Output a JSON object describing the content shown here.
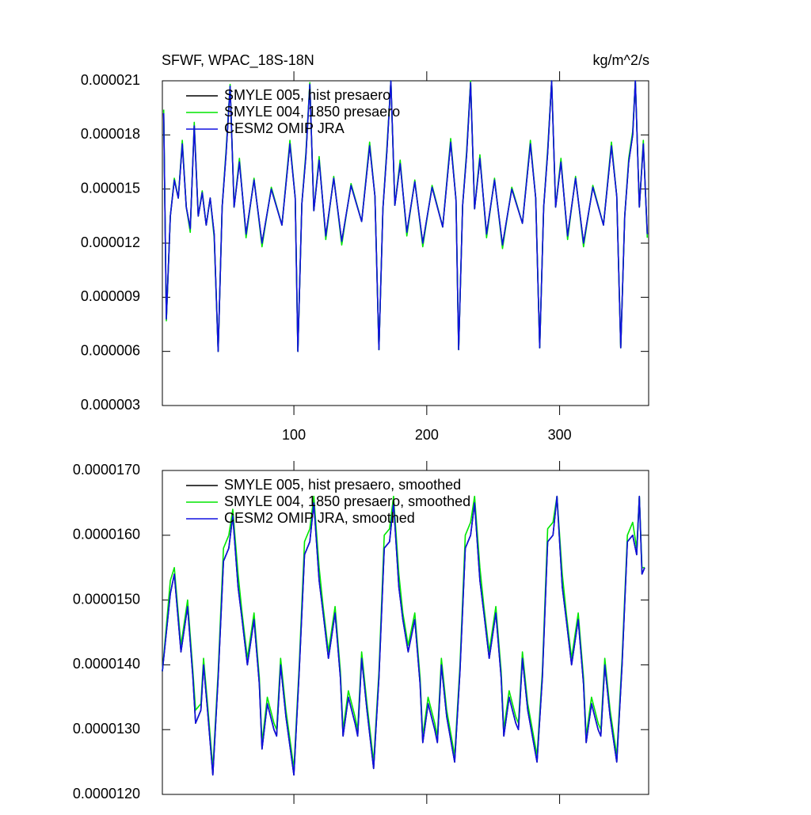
{
  "chart_data": [
    {
      "type": "line",
      "title": "SFWF, WPAC_18S-18N",
      "units": "kg/m^2/s",
      "legend": "upper left",
      "xlim": [
        1,
        367
      ],
      "xticks": [
        100,
        200,
        300
      ],
      "ylim": [
        3e-06,
        2.1e-05
      ],
      "yticks": [
        {
          "value": 3e-06,
          "label": "0.000003"
        },
        {
          "value": 6e-06,
          "label": "0.000006"
        },
        {
          "value": 9e-06,
          "label": "0.000009"
        },
        {
          "value": 1.2e-05,
          "label": "0.000012"
        },
        {
          "value": 1.5e-05,
          "label": "0.000015"
        },
        {
          "value": 1.8e-05,
          "label": "0.000018"
        },
        {
          "value": 2.1e-05,
          "label": "0.000021"
        }
      ],
      "x": [
        2,
        4,
        7,
        10,
        13,
        16,
        19,
        22,
        25,
        28,
        31,
        34,
        37,
        40,
        43,
        46,
        49,
        52,
        55,
        59,
        64,
        70,
        76,
        83,
        91,
        97,
        101,
        103,
        106,
        109,
        112,
        115,
        119,
        124,
        130,
        136,
        143,
        151,
        157,
        161,
        164,
        167,
        170,
        173,
        176,
        180,
        185,
        191,
        197,
        204,
        212,
        218,
        222,
        224,
        227,
        230,
        233,
        236,
        240,
        245,
        251,
        257,
        264,
        272,
        278,
        282,
        285,
        288,
        291,
        294,
        297,
        301,
        306,
        312,
        318,
        325,
        333,
        339,
        343,
        346,
        349,
        352,
        355,
        357,
        360,
        363,
        366
      ],
      "series": [
        {
          "name": "SMYLE 005, hist presaero",
          "color": "#000000",
          "values": [
            1.92e-05,
            7.8e-06,
            1.35e-05,
            1.55e-05,
            1.45e-05,
            1.75e-05,
            1.4e-05,
            1.28e-05,
            1.85e-05,
            1.35e-05,
            1.48e-05,
            1.3e-05,
            1.45e-05,
            1.25e-05,
            6e-06,
            1.4e-05,
            1.7e-05,
            2.07e-05,
            1.4e-05,
            1.65e-05,
            1.25e-05,
            1.55e-05,
            1.2e-05,
            1.5e-05,
            1.3e-05,
            1.75e-05,
            1.45e-05,
            6e-06,
            1.42e-05,
            1.68e-05,
            2.08e-05,
            1.38e-05,
            1.66e-05,
            1.24e-05,
            1.56e-05,
            1.21e-05,
            1.52e-05,
            1.32e-05,
            1.74e-05,
            1.46e-05,
            6.1e-06,
            1.39e-05,
            1.71e-05,
            2.1e-05,
            1.41e-05,
            1.64e-05,
            1.26e-05,
            1.54e-05,
            1.2e-05,
            1.51e-05,
            1.29e-05,
            1.76e-05,
            1.44e-05,
            6.1e-06,
            1.41e-05,
            1.69e-05,
            2.09e-05,
            1.39e-05,
            1.67e-05,
            1.25e-05,
            1.55e-05,
            1.19e-05,
            1.5e-05,
            1.31e-05,
            1.75e-05,
            1.45e-05,
            6.2e-06,
            1.4e-05,
            1.7e-05,
            2.1e-05,
            1.4e-05,
            1.65e-05,
            1.24e-05,
            1.56e-05,
            1.2e-05,
            1.51e-05,
            1.3e-05,
            1.74e-05,
            1.46e-05,
            6.2e-06,
            1.35e-05,
            1.65e-05,
            1.8e-05,
            2.1e-05,
            1.4e-05,
            1.75e-05,
            1.25e-05
          ]
        },
        {
          "name": "SMYLE 004, 1850 presaero",
          "color": "#00e600",
          "values": [
            1.94e-05,
            7.7e-06,
            1.35e-05,
            1.56e-05,
            1.45e-05,
            1.77e-05,
            1.4e-05,
            1.26e-05,
            1.87e-05,
            1.35e-05,
            1.49e-05,
            1.3e-05,
            1.45e-05,
            1.23e-05,
            6e-06,
            1.4e-05,
            1.72e-05,
            2.08e-05,
            1.4e-05,
            1.67e-05,
            1.23e-05,
            1.56e-05,
            1.18e-05,
            1.51e-05,
            1.3e-05,
            1.77e-05,
            1.45e-05,
            6e-06,
            1.42e-05,
            1.7e-05,
            2.09e-05,
            1.38e-05,
            1.68e-05,
            1.22e-05,
            1.57e-05,
            1.19e-05,
            1.53e-05,
            1.32e-05,
            1.76e-05,
            1.46e-05,
            6.1e-06,
            1.39e-05,
            1.73e-05,
            2.1e-05,
            1.41e-05,
            1.66e-05,
            1.24e-05,
            1.55e-05,
            1.18e-05,
            1.52e-05,
            1.29e-05,
            1.78e-05,
            1.44e-05,
            6.1e-06,
            1.41e-05,
            1.71e-05,
            2.1e-05,
            1.39e-05,
            1.69e-05,
            1.23e-05,
            1.56e-05,
            1.17e-05,
            1.51e-05,
            1.31e-05,
            1.77e-05,
            1.45e-05,
            6.2e-06,
            1.4e-05,
            1.72e-05,
            2.1e-05,
            1.4e-05,
            1.67e-05,
            1.22e-05,
            1.57e-05,
            1.18e-05,
            1.52e-05,
            1.3e-05,
            1.76e-05,
            1.46e-05,
            6.2e-06,
            1.35e-05,
            1.67e-05,
            1.82e-05,
            2.1e-05,
            1.4e-05,
            1.77e-05,
            1.23e-05
          ]
        },
        {
          "name": "CESM2 OMIP JRA",
          "color": "#1010e0",
          "values": [
            1.92e-05,
            7.8e-06,
            1.35e-05,
            1.55e-05,
            1.45e-05,
            1.75e-05,
            1.4e-05,
            1.28e-05,
            1.85e-05,
            1.35e-05,
            1.48e-05,
            1.3e-05,
            1.45e-05,
            1.25e-05,
            6e-06,
            1.4e-05,
            1.7e-05,
            2.07e-05,
            1.4e-05,
            1.65e-05,
            1.25e-05,
            1.55e-05,
            1.2e-05,
            1.5e-05,
            1.3e-05,
            1.75e-05,
            1.45e-05,
            6e-06,
            1.42e-05,
            1.68e-05,
            2.08e-05,
            1.38e-05,
            1.66e-05,
            1.24e-05,
            1.56e-05,
            1.21e-05,
            1.52e-05,
            1.32e-05,
            1.74e-05,
            1.46e-05,
            6.1e-06,
            1.39e-05,
            1.71e-05,
            2.1e-05,
            1.41e-05,
            1.64e-05,
            1.26e-05,
            1.54e-05,
            1.2e-05,
            1.51e-05,
            1.29e-05,
            1.76e-05,
            1.44e-05,
            6.1e-06,
            1.41e-05,
            1.69e-05,
            2.09e-05,
            1.39e-05,
            1.67e-05,
            1.25e-05,
            1.55e-05,
            1.19e-05,
            1.5e-05,
            1.31e-05,
            1.75e-05,
            1.45e-05,
            6.2e-06,
            1.4e-05,
            1.7e-05,
            2.1e-05,
            1.4e-05,
            1.65e-05,
            1.24e-05,
            1.56e-05,
            1.2e-05,
            1.51e-05,
            1.3e-05,
            1.74e-05,
            1.46e-05,
            6.2e-06,
            1.35e-05,
            1.65e-05,
            1.8e-05,
            2.1e-05,
            1.4e-05,
            1.75e-05,
            1.25e-05
          ]
        }
      ]
    },
    {
      "type": "line",
      "legend": "upper left",
      "xlim": [
        1,
        367
      ],
      "xticks": [
        100,
        200,
        300
      ],
      "ylim": [
        1.2e-05,
        1.7e-05
      ],
      "yticks": [
        {
          "value": 1.2e-05,
          "label": "0.0000120"
        },
        {
          "value": 1.3e-05,
          "label": "0.0000130"
        },
        {
          "value": 1.4e-05,
          "label": "0.0000140"
        },
        {
          "value": 1.5e-05,
          "label": "0.0000150"
        },
        {
          "value": 1.6e-05,
          "label": "0.0000160"
        },
        {
          "value": 1.7e-05,
          "label": "0.0000170"
        }
      ],
      "x": [
        1,
        7,
        10,
        15,
        20,
        24,
        26,
        30,
        32,
        35,
        39,
        43,
        47,
        51,
        54,
        58,
        61,
        65,
        70,
        74,
        76,
        80,
        85,
        87,
        90,
        94,
        100,
        104,
        108,
        112,
        115,
        119,
        122,
        126,
        131,
        135,
        137,
        141,
        146,
        148,
        151,
        155,
        160,
        164,
        168,
        172,
        175,
        179,
        182,
        186,
        191,
        195,
        197,
        201,
        206,
        208,
        211,
        215,
        221,
        225,
        229,
        233,
        236,
        240,
        243,
        247,
        252,
        256,
        258,
        262,
        267,
        269,
        272,
        276,
        283,
        287,
        291,
        295,
        298,
        302,
        305,
        309,
        314,
        318,
        320,
        324,
        329,
        331,
        334,
        338,
        343,
        347,
        351,
        355,
        358,
        360,
        362,
        364
      ],
      "series": [
        {
          "name": "SMYLE 005, hist presaero, smoothed",
          "color": "#000000",
          "values": [
            1.39e-05,
            1.51e-05,
            1.54e-05,
            1.42e-05,
            1.49e-05,
            1.38e-05,
            1.31e-05,
            1.33e-05,
            1.4e-05,
            1.33e-05,
            1.23e-05,
            1.38e-05,
            1.56e-05,
            1.58e-05,
            1.63e-05,
            1.52e-05,
            1.47e-05,
            1.4e-05,
            1.47e-05,
            1.37e-05,
            1.27e-05,
            1.34e-05,
            1.3e-05,
            1.29e-05,
            1.4e-05,
            1.32e-05,
            1.23e-05,
            1.39e-05,
            1.57e-05,
            1.59e-05,
            1.65e-05,
            1.53e-05,
            1.48e-05,
            1.41e-05,
            1.48e-05,
            1.38e-05,
            1.29e-05,
            1.35e-05,
            1.31e-05,
            1.29e-05,
            1.41e-05,
            1.33e-05,
            1.24e-05,
            1.38e-05,
            1.58e-05,
            1.59e-05,
            1.65e-05,
            1.52e-05,
            1.47e-05,
            1.42e-05,
            1.47e-05,
            1.37e-05,
            1.28e-05,
            1.34e-05,
            1.3e-05,
            1.28e-05,
            1.4e-05,
            1.32e-05,
            1.25e-05,
            1.39e-05,
            1.58e-05,
            1.6e-05,
            1.65e-05,
            1.53e-05,
            1.48e-05,
            1.41e-05,
            1.48e-05,
            1.38e-05,
            1.29e-05,
            1.35e-05,
            1.31e-05,
            1.3e-05,
            1.41e-05,
            1.33e-05,
            1.25e-05,
            1.38e-05,
            1.59e-05,
            1.6e-05,
            1.66e-05,
            1.52e-05,
            1.47e-05,
            1.4e-05,
            1.47e-05,
            1.37e-05,
            1.28e-05,
            1.34e-05,
            1.3e-05,
            1.29e-05,
            1.4e-05,
            1.32e-05,
            1.25e-05,
            1.4e-05,
            1.59e-05,
            1.6e-05,
            1.57e-05,
            1.66e-05,
            1.54e-05,
            1.55e-05
          ]
        },
        {
          "name": "SMYLE 004, 1850 presaero, smoothed",
          "color": "#00e600",
          "values": [
            1.39e-05,
            1.53e-05,
            1.55e-05,
            1.43e-05,
            1.5e-05,
            1.39e-05,
            1.33e-05,
            1.34e-05,
            1.41e-05,
            1.34e-05,
            1.24e-05,
            1.39e-05,
            1.58e-05,
            1.6e-05,
            1.64e-05,
            1.54e-05,
            1.48e-05,
            1.41e-05,
            1.48e-05,
            1.38e-05,
            1.28e-05,
            1.35e-05,
            1.31e-05,
            1.3e-05,
            1.41e-05,
            1.33e-05,
            1.24e-05,
            1.4e-05,
            1.59e-05,
            1.61e-05,
            1.66e-05,
            1.55e-05,
            1.49e-05,
            1.42e-05,
            1.49e-05,
            1.39e-05,
            1.3e-05,
            1.36e-05,
            1.32e-05,
            1.3e-05,
            1.42e-05,
            1.34e-05,
            1.25e-05,
            1.39e-05,
            1.6e-05,
            1.61e-05,
            1.66e-05,
            1.54e-05,
            1.48e-05,
            1.43e-05,
            1.48e-05,
            1.38e-05,
            1.29e-05,
            1.35e-05,
            1.31e-05,
            1.29e-05,
            1.41e-05,
            1.33e-05,
            1.26e-05,
            1.4e-05,
            1.6e-05,
            1.62e-05,
            1.66e-05,
            1.55e-05,
            1.49e-05,
            1.42e-05,
            1.49e-05,
            1.39e-05,
            1.3e-05,
            1.36e-05,
            1.32e-05,
            1.31e-05,
            1.42e-05,
            1.34e-05,
            1.26e-05,
            1.39e-05,
            1.61e-05,
            1.62e-05,
            1.66e-05,
            1.54e-05,
            1.48e-05,
            1.41e-05,
            1.48e-05,
            1.38e-05,
            1.29e-05,
            1.35e-05,
            1.31e-05,
            1.3e-05,
            1.41e-05,
            1.33e-05,
            1.26e-05,
            1.41e-05,
            1.6e-05,
            1.62e-05,
            1.58e-05,
            1.66e-05,
            1.55e-05,
            1.55e-05
          ]
        },
        {
          "name": "CESM2 OMIP JRA, smoothed",
          "color": "#1010e0",
          "values": [
            1.39e-05,
            1.51e-05,
            1.54e-05,
            1.42e-05,
            1.49e-05,
            1.38e-05,
            1.31e-05,
            1.33e-05,
            1.4e-05,
            1.33e-05,
            1.23e-05,
            1.38e-05,
            1.56e-05,
            1.58e-05,
            1.63e-05,
            1.52e-05,
            1.47e-05,
            1.4e-05,
            1.47e-05,
            1.37e-05,
            1.27e-05,
            1.34e-05,
            1.3e-05,
            1.29e-05,
            1.4e-05,
            1.32e-05,
            1.23e-05,
            1.39e-05,
            1.57e-05,
            1.59e-05,
            1.65e-05,
            1.53e-05,
            1.48e-05,
            1.41e-05,
            1.48e-05,
            1.38e-05,
            1.29e-05,
            1.35e-05,
            1.31e-05,
            1.29e-05,
            1.41e-05,
            1.33e-05,
            1.24e-05,
            1.38e-05,
            1.58e-05,
            1.59e-05,
            1.65e-05,
            1.52e-05,
            1.47e-05,
            1.42e-05,
            1.47e-05,
            1.37e-05,
            1.28e-05,
            1.34e-05,
            1.3e-05,
            1.28e-05,
            1.4e-05,
            1.32e-05,
            1.25e-05,
            1.39e-05,
            1.58e-05,
            1.6e-05,
            1.65e-05,
            1.53e-05,
            1.48e-05,
            1.41e-05,
            1.48e-05,
            1.38e-05,
            1.29e-05,
            1.35e-05,
            1.31e-05,
            1.3e-05,
            1.41e-05,
            1.33e-05,
            1.25e-05,
            1.38e-05,
            1.59e-05,
            1.6e-05,
            1.66e-05,
            1.52e-05,
            1.47e-05,
            1.4e-05,
            1.47e-05,
            1.37e-05,
            1.28e-05,
            1.34e-05,
            1.3e-05,
            1.29e-05,
            1.4e-05,
            1.32e-05,
            1.25e-05,
            1.4e-05,
            1.59e-05,
            1.6e-05,
            1.57e-05,
            1.66e-05,
            1.54e-05,
            1.55e-05
          ]
        }
      ]
    }
  ]
}
